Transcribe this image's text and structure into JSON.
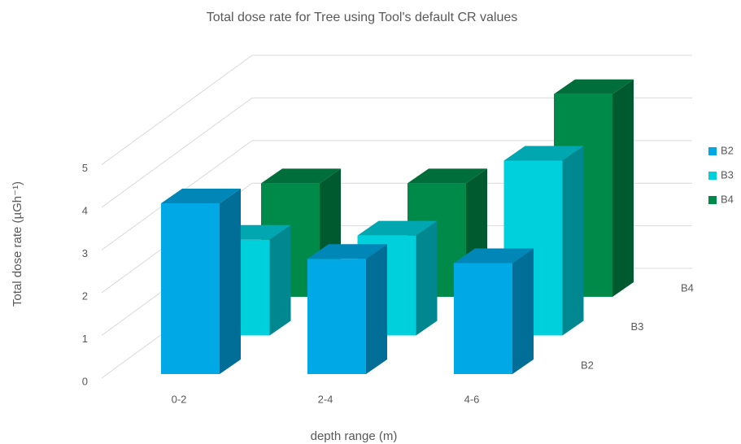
{
  "chart_data": {
    "type": "bar3d",
    "title": "Total dose rate for Tree using Tool's default CR values",
    "x_label": "depth range (m)",
    "y_label": "Total dose rate (µGh⁻¹)",
    "categories": [
      "0-2",
      "2-4",
      "4-6"
    ],
    "series": [
      {
        "name": "B2",
        "color": "#00a9e6",
        "values": [
          4.0,
          2.7,
          2.6
        ]
      },
      {
        "name": "B3",
        "color": "#00cfdc",
        "values": [
          2.3,
          2.4,
          4.2
        ]
      },
      {
        "name": "B4",
        "color": "#008a4a",
        "values": [
          2.8,
          2.8,
          5.0
        ]
      }
    ],
    "ylim": [
      0,
      5
    ],
    "yticks": [
      0,
      1,
      2,
      3,
      4,
      5
    ],
    "grid": true,
    "legend": "right"
  }
}
